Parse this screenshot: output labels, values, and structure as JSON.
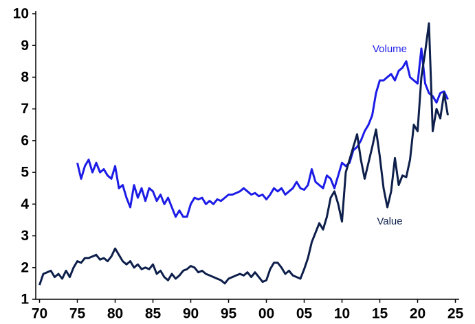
{
  "chart_data": {
    "type": "line",
    "x": [
      1970,
      1970.5,
      1971,
      1971.5,
      1972,
      1972.5,
      1973,
      1973.5,
      1974,
      1974.5,
      1975,
      1975.5,
      1976,
      1976.5,
      1977,
      1977.5,
      1978,
      1978.5,
      1979,
      1979.5,
      1980,
      1980.5,
      1981,
      1981.5,
      1982,
      1982.5,
      1983,
      1983.5,
      1984,
      1984.5,
      1985,
      1985.5,
      1986,
      1986.5,
      1987,
      1987.5,
      1988,
      1988.5,
      1989,
      1989.5,
      1990,
      1990.5,
      1991,
      1991.5,
      1992,
      1992.5,
      1993,
      1993.5,
      1994,
      1994.5,
      1995,
      1995.5,
      1996,
      1996.5,
      1997,
      1997.5,
      1998,
      1998.5,
      1999,
      1999.5,
      2000,
      2000.5,
      2001,
      2001.5,
      2002,
      2002.5,
      2003,
      2003.5,
      2004,
      2004.5,
      2005,
      2005.5,
      2006,
      2006.5,
      2007,
      2007.5,
      2008,
      2008.5,
      2009,
      2009.5,
      2010,
      2010.5,
      2011,
      2011.5,
      2012,
      2012.5,
      2013,
      2013.5,
      2014,
      2014.5,
      2015,
      2015.5,
      2016,
      2016.5,
      2017,
      2017.5,
      2018,
      2018.5,
      2019,
      2019.5,
      2020,
      2020.5,
      2021,
      2021.5,
      2022,
      2022.5,
      2023,
      2023.5,
      2024
    ],
    "series": [
      {
        "name": "Volume",
        "color": "#1c1ce6",
        "values": [
          null,
          null,
          null,
          null,
          null,
          null,
          null,
          null,
          null,
          null,
          5.3,
          4.8,
          5.2,
          5.4,
          5.0,
          5.3,
          5.0,
          5.1,
          4.9,
          4.8,
          5.2,
          4.5,
          4.6,
          4.2,
          3.9,
          4.6,
          4.2,
          4.5,
          4.1,
          4.5,
          4.4,
          4.1,
          4.3,
          4.0,
          4.2,
          3.9,
          3.6,
          3.8,
          3.6,
          3.6,
          4.0,
          4.2,
          4.15,
          4.2,
          4.0,
          4.1,
          4.0,
          4.15,
          4.1,
          4.2,
          4.3,
          4.3,
          4.35,
          4.4,
          4.5,
          4.4,
          4.3,
          4.35,
          4.25,
          4.3,
          4.15,
          4.3,
          4.5,
          4.4,
          4.5,
          4.3,
          4.4,
          4.5,
          4.7,
          4.5,
          4.45,
          4.6,
          5.1,
          4.7,
          4.6,
          4.5,
          4.9,
          4.8,
          4.5,
          4.9,
          5.3,
          5.2,
          5.3,
          5.7,
          5.8,
          6.0,
          6.3,
          6.5,
          6.8,
          7.5,
          7.9,
          7.9,
          8.0,
          8.1,
          7.9,
          8.2,
          8.3,
          8.5,
          8.0,
          7.9,
          7.8,
          8.9,
          7.8,
          7.5,
          7.4,
          7.2,
          7.5,
          7.55,
          7.3
        ]
      },
      {
        "name": "Value",
        "color": "#0d1f4a",
        "values": [
          1.45,
          1.8,
          1.85,
          1.9,
          1.7,
          1.8,
          1.65,
          1.9,
          1.7,
          2.0,
          2.2,
          2.15,
          2.3,
          2.3,
          2.35,
          2.4,
          2.25,
          2.3,
          2.2,
          2.35,
          2.6,
          2.4,
          2.2,
          2.1,
          2.2,
          2.0,
          2.1,
          1.95,
          2.0,
          1.95,
          2.1,
          1.8,
          1.9,
          1.7,
          1.6,
          1.8,
          1.65,
          1.75,
          1.9,
          1.95,
          2.05,
          2.0,
          1.85,
          1.9,
          1.8,
          1.75,
          1.7,
          1.65,
          1.6,
          1.5,
          1.65,
          1.7,
          1.75,
          1.8,
          1.75,
          1.85,
          1.7,
          1.85,
          1.7,
          1.55,
          1.6,
          1.95,
          2.15,
          2.15,
          2.0,
          1.8,
          1.9,
          1.75,
          1.7,
          1.65,
          1.95,
          2.3,
          2.8,
          3.1,
          3.4,
          3.2,
          3.6,
          4.2,
          4.4,
          4.0,
          3.45,
          5.0,
          5.4,
          5.8,
          6.2,
          5.4,
          4.8,
          5.3,
          5.8,
          6.35,
          5.5,
          4.5,
          3.9,
          4.4,
          5.45,
          4.6,
          4.9,
          4.85,
          5.4,
          6.5,
          6.3,
          8.0,
          8.8,
          9.7,
          6.3,
          7.0,
          6.7,
          7.5,
          6.8
        ]
      }
    ],
    "xlim": [
      1969.5,
      2025.5
    ],
    "xticks": [
      {
        "value": 1970,
        "label": "70"
      },
      {
        "value": 1975,
        "label": "75"
      },
      {
        "value": 1980,
        "label": "80"
      },
      {
        "value": 1985,
        "label": "85"
      },
      {
        "value": 1990,
        "label": "90"
      },
      {
        "value": 1995,
        "label": "95"
      },
      {
        "value": 2000,
        "label": "00"
      },
      {
        "value": 2005,
        "label": "05"
      },
      {
        "value": 2010,
        "label": "10"
      },
      {
        "value": 2015,
        "label": "15"
      },
      {
        "value": 2020,
        "label": "20"
      },
      {
        "value": 2025,
        "label": "25"
      }
    ],
    "ylim": [
      1,
      10
    ],
    "yticks": [
      1,
      2,
      3,
      4,
      5,
      6,
      7,
      8,
      9,
      10
    ],
    "grid": false
  }
}
